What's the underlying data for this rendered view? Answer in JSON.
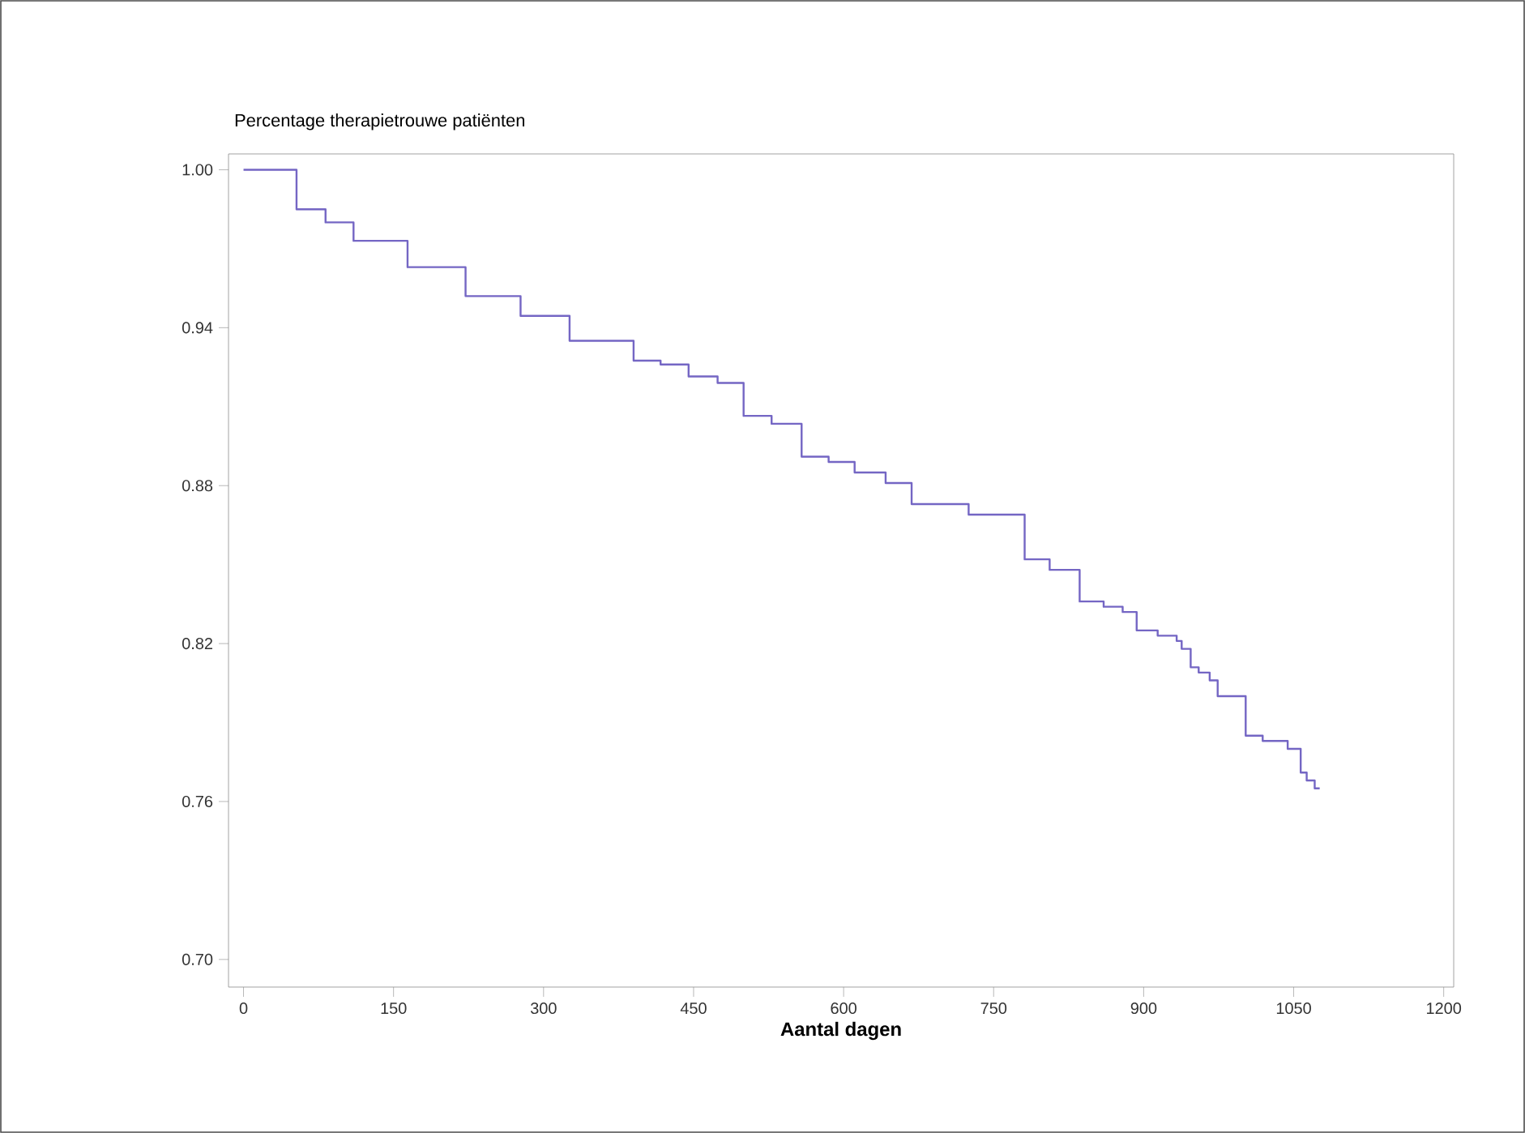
{
  "chart_data": {
    "type": "step",
    "title": "Percentage therapietrouwe patiënten",
    "xlabel": "Aantal dagen",
    "x": [
      0,
      53,
      82,
      110,
      164,
      222,
      277,
      326,
      390,
      417,
      445,
      474,
      500,
      528,
      558,
      585,
      611,
      642,
      668,
      725,
      781,
      806,
      836,
      860,
      879,
      893,
      914,
      933,
      938,
      947,
      955,
      966,
      974,
      1002,
      1019,
      1044,
      1057,
      1063,
      1071,
      1076
    ],
    "values": [
      1.0,
      0.985,
      0.98,
      0.973,
      0.963,
      0.952,
      0.9445,
      0.935,
      0.9275,
      0.926,
      0.9215,
      0.919,
      0.9065,
      0.9035,
      0.891,
      0.889,
      0.885,
      0.881,
      0.873,
      0.869,
      0.852,
      0.848,
      0.836,
      0.834,
      0.832,
      0.825,
      0.823,
      0.821,
      0.818,
      0.811,
      0.809,
      0.806,
      0.8,
      0.785,
      0.783,
      0.78,
      0.771,
      0.768,
      0.765,
      0.765
    ],
    "color": "#7466c4",
    "xlim": [
      -15,
      1210
    ],
    "ylim": [
      0.6895,
      1.006
    ],
    "xticks": [
      0,
      150,
      300,
      450,
      600,
      750,
      900,
      1050,
      1200
    ],
    "yticks": [
      {
        "value": 0.7,
        "label": "0.70"
      },
      0.76,
      0.82,
      0.88,
      0.94,
      {
        "value": 1.0,
        "label": "1.00"
      }
    ],
    "grid": false,
    "marker": "none",
    "line_style": "solid"
  }
}
